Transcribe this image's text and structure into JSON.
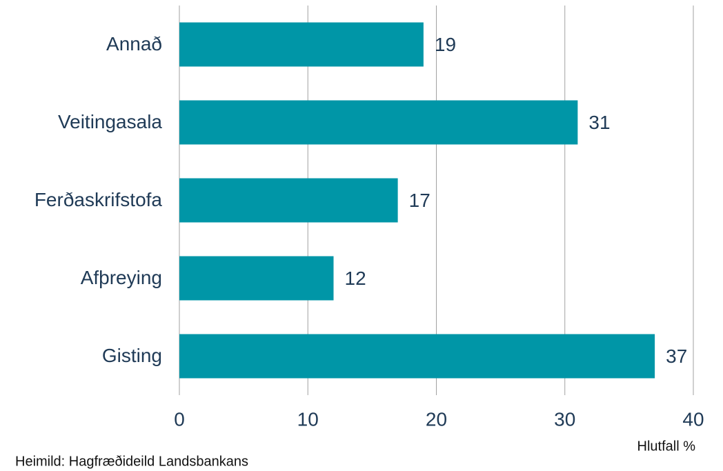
{
  "chart_data": {
    "type": "bar",
    "orientation": "horizontal",
    "categories": [
      "Annað",
      "Veitingasala",
      "Ferðaskrifstofa",
      "Afþreying",
      "Gisting"
    ],
    "values": [
      19,
      31,
      17,
      12,
      37
    ],
    "color": "#0096a7",
    "xlim": [
      0,
      40
    ],
    "xticks": [
      0,
      10,
      20,
      30,
      40
    ],
    "grid": true,
    "xlabel": "Hlutfall %",
    "source": "Heimild: Hagfræðideild Landsbankans"
  }
}
